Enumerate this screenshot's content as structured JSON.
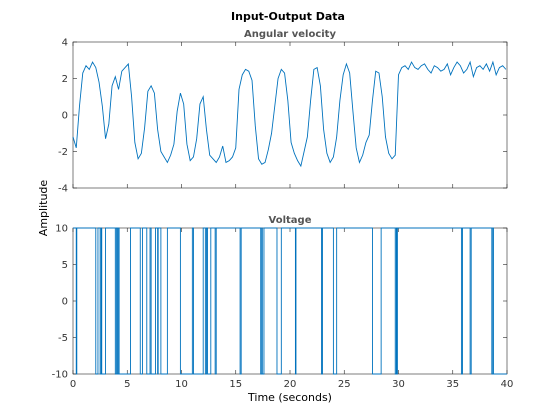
{
  "chart_data": {
    "type": "line",
    "title": "Input-Output Data",
    "ylabel": "Amplitude",
    "xlabel": "Time (seconds)",
    "xlim": [
      0,
      40
    ],
    "x_ticks": [
      0,
      5,
      10,
      15,
      20,
      25,
      30,
      35,
      40
    ],
    "line_color": "#0072BD",
    "grid": false,
    "subplots": [
      {
        "title": "Angular velocity",
        "ylim": [
          -4,
          4
        ],
        "y_ticks": [
          4,
          2,
          0,
          -2,
          -4
        ],
        "x": [
          0,
          0.3,
          0.6,
          0.9,
          1.2,
          1.5,
          1.8,
          2.1,
          2.4,
          2.7,
          3.0,
          3.3,
          3.6,
          3.9,
          4.2,
          4.5,
          4.8,
          5.1,
          5.4,
          5.7,
          6.0,
          6.3,
          6.6,
          6.9,
          7.2,
          7.5,
          7.8,
          8.1,
          8.4,
          8.7,
          9.0,
          9.3,
          9.6,
          9.9,
          10.2,
          10.5,
          10.8,
          11.1,
          11.4,
          11.7,
          12.0,
          12.3,
          12.6,
          12.9,
          13.2,
          13.5,
          13.8,
          14.1,
          14.4,
          14.7,
          15.0,
          15.3,
          15.6,
          15.9,
          16.2,
          16.5,
          16.8,
          17.1,
          17.4,
          17.7,
          18.0,
          18.3,
          18.6,
          18.9,
          19.2,
          19.5,
          19.8,
          20.1,
          20.4,
          20.7,
          21.0,
          21.3,
          21.6,
          21.9,
          22.2,
          22.5,
          22.8,
          23.1,
          23.4,
          23.7,
          24.0,
          24.3,
          24.6,
          24.9,
          25.2,
          25.5,
          25.8,
          26.1,
          26.4,
          26.7,
          27.0,
          27.3,
          27.6,
          27.9,
          28.2,
          28.5,
          28.8,
          29.1,
          29.4,
          29.7,
          30.0,
          30.3,
          30.6,
          30.9,
          31.2,
          31.5,
          31.8,
          32.1,
          32.4,
          32.7,
          33.0,
          33.3,
          33.6,
          33.9,
          34.2,
          34.5,
          34.8,
          35.1,
          35.4,
          35.7,
          36.0,
          36.3,
          36.6,
          36.9,
          37.2,
          37.5,
          37.8,
          38.1,
          38.4,
          38.7,
          39.0,
          39.3,
          39.6,
          39.9
        ],
        "y": [
          -1.2,
          -1.8,
          0.5,
          2.3,
          2.7,
          2.5,
          2.9,
          2.6,
          1.8,
          0.5,
          -1.3,
          -0.5,
          1.6,
          2.1,
          1.4,
          2.4,
          2.6,
          2.8,
          1.0,
          -1.5,
          -2.4,
          -2.1,
          -0.7,
          1.3,
          1.6,
          1.2,
          -0.8,
          -2.0,
          -2.3,
          -2.6,
          -2.2,
          -1.6,
          0.2,
          1.2,
          0.6,
          -1.6,
          -2.5,
          -2.3,
          -1.3,
          0.6,
          1.0,
          -0.8,
          -2.2,
          -2.4,
          -2.6,
          -2.3,
          -1.7,
          -2.6,
          -2.5,
          -2.3,
          -1.8,
          1.4,
          2.2,
          2.5,
          2.4,
          1.9,
          -0.6,
          -2.4,
          -2.7,
          -2.6,
          -1.9,
          -1.0,
          0.5,
          2.0,
          2.5,
          2.3,
          0.8,
          -1.5,
          -2.1,
          -2.5,
          -2.8,
          -2.0,
          -1.2,
          0.8,
          2.5,
          2.6,
          1.6,
          -0.8,
          -2.1,
          -2.6,
          -2.3,
          -1.2,
          0.8,
          2.2,
          2.8,
          2.3,
          0.2,
          -1.8,
          -2.6,
          -2.2,
          -1.5,
          -1.1,
          0.8,
          2.4,
          2.3,
          1.0,
          -1.2,
          -2.1,
          -2.4,
          -2.2,
          2.2,
          2.6,
          2.7,
          2.5,
          2.9,
          2.6,
          2.5,
          2.7,
          2.8,
          2.5,
          2.3,
          2.7,
          2.6,
          2.4,
          2.5,
          2.8,
          2.2,
          2.6,
          2.9,
          2.7,
          2.3,
          2.5,
          2.9,
          2.1,
          2.6,
          2.7,
          2.5,
          2.8,
          2.4,
          2.9,
          2.2,
          2.6,
          2.7,
          2.5
        ]
      },
      {
        "title": "Voltage",
        "ylim": [
          -10,
          10
        ],
        "y_ticks": [
          10,
          5,
          0,
          -5,
          -10
        ],
        "step_times": [
          0.3,
          0.35,
          2.1,
          2.3,
          2.5,
          2.6,
          2.65,
          3.0,
          3.9,
          4.0,
          4.1,
          4.2,
          4.25,
          5.3,
          6.2,
          6.4,
          6.8,
          7.1,
          7.2,
          7.6,
          7.8,
          7.85,
          8.1,
          8.7,
          9.9,
          11.0,
          11.1,
          12.0,
          12.2,
          12.3,
          12.4,
          12.7,
          13.1,
          13.2,
          15.4,
          15.5,
          17.3,
          17.4,
          17.45,
          17.6,
          18.8,
          19.2,
          20.5,
          20.55,
          22.9,
          23.0,
          24.0,
          24.3,
          27.6,
          28.4,
          29.7,
          29.8,
          29.85,
          29.9,
          35.8,
          35.9,
          36.6,
          36.7,
          38.6,
          38.7,
          38.75
        ],
        "initial_value": 10
      }
    ]
  }
}
